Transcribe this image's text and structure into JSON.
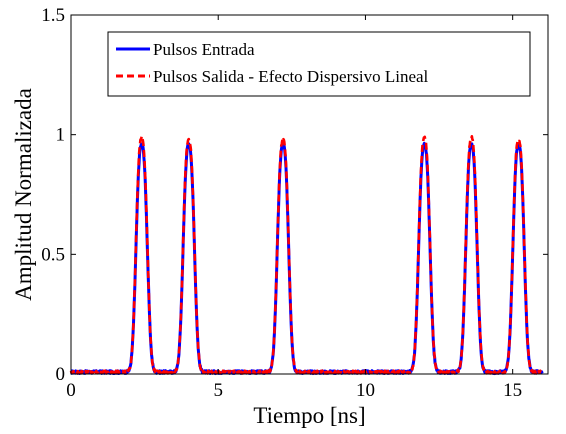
{
  "chart_data": {
    "type": "line",
    "title": "",
    "xlabel": "Tiempo [ns]",
    "ylabel": "Amplitud Normalizada",
    "xlim": [
      0,
      16.2
    ],
    "ylim": [
      0,
      1.5
    ],
    "xticks": [
      0,
      5,
      10,
      15
    ],
    "yticks": [
      0,
      0.5,
      1,
      1.5
    ],
    "xtick_labels": [
      "0",
      "5",
      "10",
      "15"
    ],
    "ytick_labels": [
      "0",
      "0.5",
      "1",
      "1.5"
    ],
    "grid": false,
    "legend_position": "top-left",
    "pulse_width_ns": 0.18,
    "series": [
      {
        "name": "Pulsos Entrada",
        "color": "#0000ff",
        "style": "solid",
        "pulses": [
          {
            "center": 2.4,
            "amplitude": 0.95
          },
          {
            "center": 4.0,
            "amplitude": 0.95
          },
          {
            "center": 7.2,
            "amplitude": 0.95
          },
          {
            "center": 12.0,
            "amplitude": 0.95
          },
          {
            "center": 13.6,
            "amplitude": 0.95
          },
          {
            "center": 15.2,
            "amplitude": 0.95
          }
        ]
      },
      {
        "name": "Pulsos Salida - Efecto Dispersivo Lineal",
        "color": "#ff0000",
        "style": "dashed",
        "pulses": [
          {
            "center": 2.4,
            "amplitude": 0.98
          },
          {
            "center": 4.0,
            "amplitude": 0.97
          },
          {
            "center": 7.2,
            "amplitude": 0.97
          },
          {
            "center": 12.0,
            "amplitude": 0.98
          },
          {
            "center": 13.6,
            "amplitude": 0.98
          },
          {
            "center": 15.2,
            "amplitude": 0.97
          }
        ]
      }
    ]
  }
}
